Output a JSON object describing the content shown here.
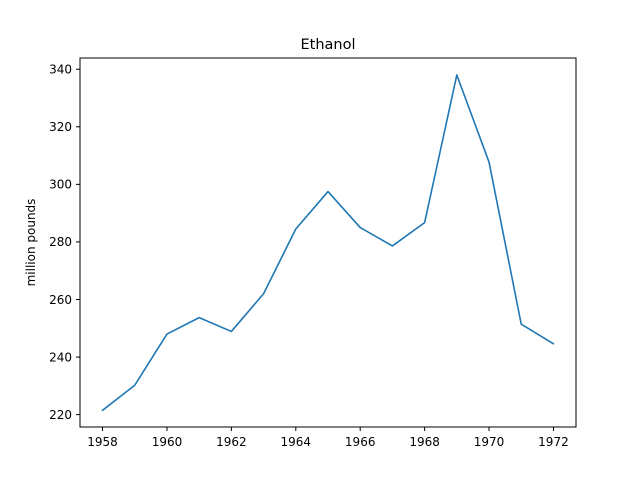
{
  "chart_data": {
    "type": "line",
    "title": "Ethanol",
    "xlabel": "",
    "ylabel": "million pounds",
    "x": [
      1958,
      1959,
      1960,
      1961,
      1962,
      1963,
      1964,
      1965,
      1966,
      1967,
      1968,
      1969,
      1970,
      1971,
      1972
    ],
    "series": [
      {
        "values": [
          221.5,
          230.2,
          248.0,
          253.7,
          248.9,
          262.0,
          284.5,
          297.5,
          285.0,
          278.6,
          286.7,
          338.0,
          307.7,
          251.4,
          244.6
        ],
        "color": "#1f77b4"
      }
    ],
    "xlim": [
      1957.3,
      1972.7
    ],
    "ylim": [
      215.7,
      343.9
    ],
    "xticks": [
      1958,
      1960,
      1962,
      1964,
      1966,
      1968,
      1970,
      1972
    ],
    "yticks": [
      220,
      240,
      260,
      280,
      300,
      320,
      340
    ],
    "grid": false,
    "legend": "none"
  }
}
